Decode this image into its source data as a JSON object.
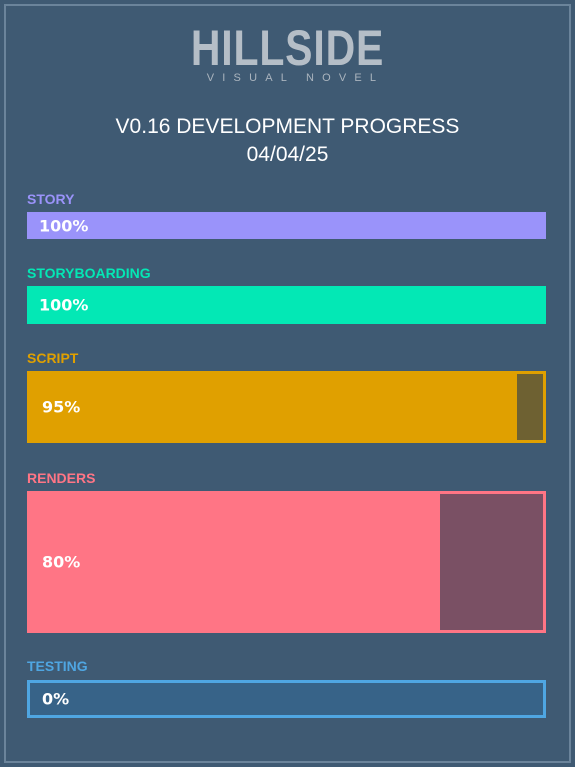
{
  "logo": {
    "title": "HILLSIDE",
    "subtitle": "VISUAL NOVEL"
  },
  "header": {
    "title": "V0.16 DEVELOPMENT PROGRESS",
    "date": "04/04/25"
  },
  "tasks": [
    {
      "label": "STORY",
      "percent_text": "100%",
      "progress": 100,
      "color": "#9a93fa"
    },
    {
      "label": "STORYBOARDING",
      "percent_text": "100%",
      "progress": 100,
      "color": "#03e8b5"
    },
    {
      "label": "SCRIPT",
      "percent_text": "95%",
      "progress": 95,
      "color": "#e0a000"
    },
    {
      "label": "RENDERS",
      "percent_text": "80%",
      "progress": 80,
      "color": "#ff7585"
    },
    {
      "label": "TESTING",
      "percent_text": "0%",
      "progress": 0,
      "color": "#4fa6e2"
    }
  ]
}
